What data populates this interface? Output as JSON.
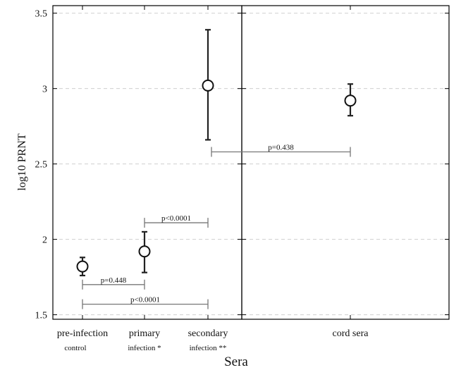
{
  "chart_data": {
    "type": "scatter",
    "xlabel": "Sera",
    "ylabel": "log10 PRNT",
    "ylim": [
      1.47,
      3.55
    ],
    "yticks": [
      "1.5",
      "2",
      "2.5",
      "3",
      "3.5"
    ],
    "yticks_values": [
      1.5,
      2,
      2.5,
      3,
      3.5
    ],
    "grid": true,
    "panels": [
      {
        "categories": [
          {
            "label": "pre-infection",
            "sub": "control",
            "mark": ""
          },
          {
            "label": "primary",
            "sub": "infection",
            "mark": "*"
          },
          {
            "label": "secondary",
            "sub": "infection",
            "mark": "**"
          }
        ],
        "points": [
          {
            "mean": 1.82,
            "low": 1.76,
            "high": 1.88
          },
          {
            "mean": 1.92,
            "low": 1.78,
            "high": 2.05
          },
          {
            "mean": 3.02,
            "low": 2.66,
            "high": 3.39
          }
        ]
      },
      {
        "categories": [
          {
            "label": "cord sera",
            "sub": "",
            "mark": ""
          }
        ],
        "points": [
          {
            "mean": 2.92,
            "low": 2.82,
            "high": 3.03
          }
        ]
      }
    ],
    "comparisons": [
      {
        "from": [
          0,
          0
        ],
        "to": [
          0,
          1
        ],
        "y": 1.7,
        "label": "p=0.448"
      },
      {
        "from": [
          0,
          0
        ],
        "to": [
          0,
          2
        ],
        "y": 1.57,
        "label": "p<0.0001"
      },
      {
        "from": [
          0,
          1
        ],
        "to": [
          0,
          2
        ],
        "y": 2.11,
        "label": "p<0.0001"
      },
      {
        "from": [
          0,
          2
        ],
        "to": [
          1,
          0
        ],
        "y": 2.58,
        "label": "p=0.438"
      }
    ]
  }
}
